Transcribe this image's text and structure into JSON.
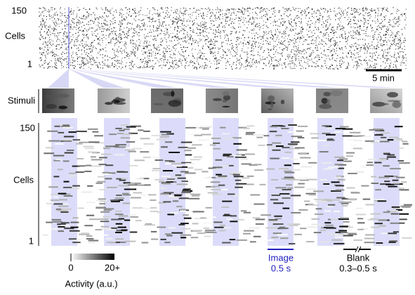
{
  "top_raster": {
    "y_max_label": "150",
    "y_label": "Cells",
    "y_min_label": "1",
    "scale_bar": "5 min"
  },
  "stimuli_label": "Stimuli",
  "bottom_raster": {
    "y_max_label": "150",
    "y_label": "Cells",
    "y_min_label": "1"
  },
  "colorbar": {
    "min_label": "0",
    "max_label": "20+",
    "title": "Activity (a.u.)"
  },
  "image_duration": {
    "label": "Image",
    "duration": "0.5 s"
  },
  "blank_duration": {
    "label": "Blank",
    "duration": "0.3–0.5 s"
  }
}
